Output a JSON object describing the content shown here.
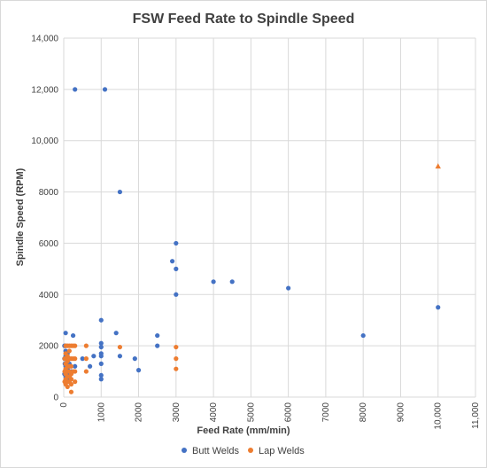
{
  "chart_data": {
    "type": "scatter",
    "title": "FSW Feed Rate to Spindle Speed",
    "xlabel": "Feed Rate (mm/min)",
    "ylabel": "Spindle Speed (RPM)",
    "xlim": [
      0,
      11000
    ],
    "ylim": [
      0,
      14000
    ],
    "x_ticks": [
      "0",
      "1000",
      "2000",
      "3000",
      "4000",
      "5000",
      "6000",
      "7000",
      "8000",
      "9000",
      "10,000",
      "11,000"
    ],
    "y_ticks": [
      "0",
      "2000",
      "4000",
      "6000",
      "8000",
      "10,000",
      "12,000",
      "14,000"
    ],
    "grid": true,
    "legend_position": "bottom",
    "series": [
      {
        "name": "Butt Welds",
        "color": "#4472c4",
        "marker": "circle",
        "points": [
          [
            300,
            12000
          ],
          [
            1100,
            12000
          ],
          [
            1500,
            8000
          ],
          [
            3000,
            6000
          ],
          [
            2900,
            5300
          ],
          [
            3000,
            5000
          ],
          [
            3000,
            4000
          ],
          [
            4000,
            4500
          ],
          [
            4500,
            4500
          ],
          [
            6000,
            4250
          ],
          [
            10000,
            3500
          ],
          [
            8000,
            2400
          ],
          [
            1000,
            3000
          ],
          [
            1400,
            2500
          ],
          [
            2500,
            2400
          ],
          [
            2500,
            2000
          ],
          [
            1000,
            2100
          ],
          [
            1000,
            1950
          ],
          [
            1000,
            1700
          ],
          [
            1000,
            1600
          ],
          [
            1000,
            1300
          ],
          [
            1000,
            850
          ],
          [
            1000,
            700
          ],
          [
            1500,
            1600
          ],
          [
            1900,
            1500
          ],
          [
            2000,
            1050
          ],
          [
            800,
            1600
          ],
          [
            700,
            1200
          ],
          [
            500,
            1500
          ],
          [
            250,
            2400
          ],
          [
            300,
            1200
          ],
          [
            200,
            1000
          ],
          [
            50,
            2500
          ],
          [
            50,
            2000
          ],
          [
            50,
            1800
          ],
          [
            50,
            1600
          ],
          [
            50,
            1500
          ],
          [
            50,
            1200
          ],
          [
            50,
            1000
          ],
          [
            50,
            800
          ],
          [
            50,
            600
          ],
          [
            100,
            1700
          ],
          [
            100,
            1400
          ],
          [
            100,
            1100
          ],
          [
            100,
            900
          ],
          [
            100,
            700
          ],
          [
            150,
            1500
          ],
          [
            150,
            1300
          ],
          [
            150,
            1000
          ],
          [
            150,
            800
          ],
          [
            150,
            600
          ],
          [
            20,
            2000
          ],
          [
            20,
            1500
          ],
          [
            20,
            900
          ],
          [
            30,
            1300
          ]
        ]
      },
      {
        "name": "Lap Welds",
        "color": "#ed7d31",
        "marker": "circle",
        "points": [
          [
            10000,
            9000
          ],
          [
            3000,
            1950
          ],
          [
            3000,
            1500
          ],
          [
            3000,
            1100
          ],
          [
            1500,
            1950
          ],
          [
            600,
            2000
          ],
          [
            600,
            1500
          ],
          [
            600,
            1000
          ],
          [
            300,
            2000
          ],
          [
            300,
            1500
          ],
          [
            300,
            1000
          ],
          [
            300,
            600
          ],
          [
            250,
            2000
          ],
          [
            250,
            1500
          ],
          [
            250,
            1000
          ],
          [
            200,
            2000
          ],
          [
            200,
            1500
          ],
          [
            200,
            1200
          ],
          [
            200,
            900
          ],
          [
            200,
            700
          ],
          [
            200,
            500
          ],
          [
            200,
            200
          ],
          [
            150,
            2000
          ],
          [
            150,
            1800
          ],
          [
            150,
            1500
          ],
          [
            150,
            1200
          ],
          [
            150,
            1000
          ],
          [
            150,
            800
          ],
          [
            150,
            600
          ],
          [
            100,
            2000
          ],
          [
            100,
            1600
          ],
          [
            100,
            1400
          ],
          [
            100,
            1200
          ],
          [
            100,
            1000
          ],
          [
            100,
            800
          ],
          [
            100,
            600
          ],
          [
            100,
            400
          ],
          [
            50,
            2000
          ],
          [
            50,
            1700
          ],
          [
            50,
            1500
          ],
          [
            50,
            1300
          ],
          [
            50,
            1100
          ],
          [
            50,
            900
          ],
          [
            50,
            700
          ],
          [
            50,
            500
          ],
          [
            25,
            1500
          ],
          [
            25,
            1000
          ],
          [
            25,
            600
          ]
        ]
      }
    ]
  }
}
